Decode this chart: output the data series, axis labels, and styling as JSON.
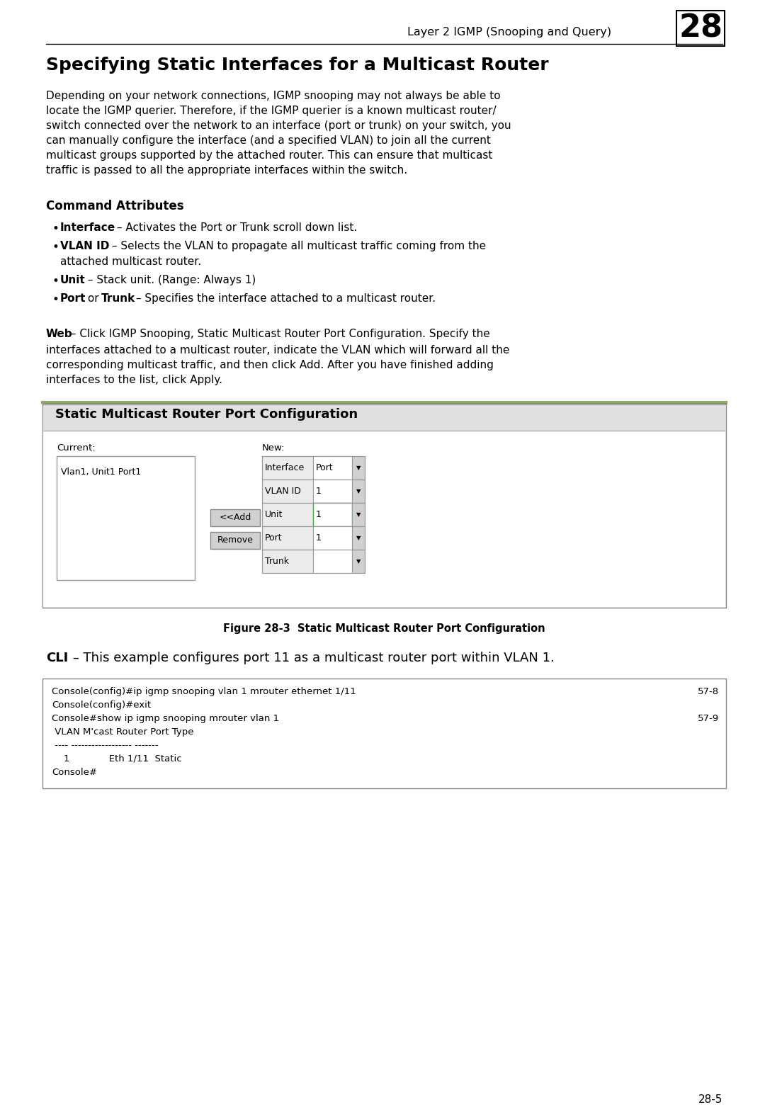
{
  "page_bg": "#ffffff",
  "header_text": "Layer 2 IGMP (Snooping and Query)",
  "header_chapter": "28",
  "title": "Specifying Static Interfaces for a Multicast Router",
  "body_lines": [
    "Depending on your network connections, IGMP snooping may not always be able to",
    "locate the IGMP querier. Therefore, if the IGMP querier is a known multicast router/",
    "switch connected over the network to an interface (port or trunk) on your switch, you",
    "can manually configure the interface (and a specified VLAN) to join all the current",
    "multicast groups supported by the attached router. This can ensure that multicast",
    "traffic is passed to all the appropriate interfaces within the switch."
  ],
  "cmd_attr_heading": "Command Attributes",
  "web_lines": [
    "interfaces attached to a multicast router, indicate the VLAN which will forward all the",
    "corresponding multicast traffic, and then click Add. After you have finished adding",
    "interfaces to the list, click Apply."
  ],
  "web_first_bold": "Web",
  "web_first_rest": " – Click IGMP Snooping, Static Multicast Router Port Configuration. Specify the",
  "figure_caption": "Figure 28-3  Static Multicast Router Port Configuration",
  "cli_bold": "CLI",
  "cli_rest": " – This example configures port 11 as a multicast router port within VLAN 1.",
  "code_lines": [
    {
      "text": "Console(config)#ip igmp snooping vlan 1 mrouter ethernet 1/11",
      "ref": "57-8"
    },
    {
      "text": "Console(config)#exit",
      "ref": ""
    },
    {
      "text": "Console#show ip igmp snooping mrouter vlan 1",
      "ref": "57-9"
    },
    {
      "text": " VLAN M'cast Router Port Type",
      "ref": ""
    },
    {
      "text": " ---- ------------------ -------",
      "ref": ""
    },
    {
      "text": "    1             Eth 1/11  Static",
      "ref": ""
    },
    {
      "text": "Console#",
      "ref": ""
    }
  ],
  "page_number": "28-5",
  "screenshot_title": "Static Multicast Router Port Configuration",
  "current_label": "Current:",
  "new_label": "New:",
  "listbox_item": "Vlan1, Unit1 Port1",
  "fields": [
    {
      "label": "Interface",
      "value": "Port",
      "has_arrow": true
    },
    {
      "label": "VLAN ID",
      "value": "1",
      "has_arrow": true
    },
    {
      "label": "Unit",
      "value": "1",
      "has_arrow": true,
      "green_border": true
    },
    {
      "label": "Port",
      "value": "1",
      "has_arrow": true
    },
    {
      "label": "Trunk",
      "value": "",
      "has_arrow": true
    }
  ],
  "btn_add": "<<Add",
  "btn_remove": "Remove"
}
